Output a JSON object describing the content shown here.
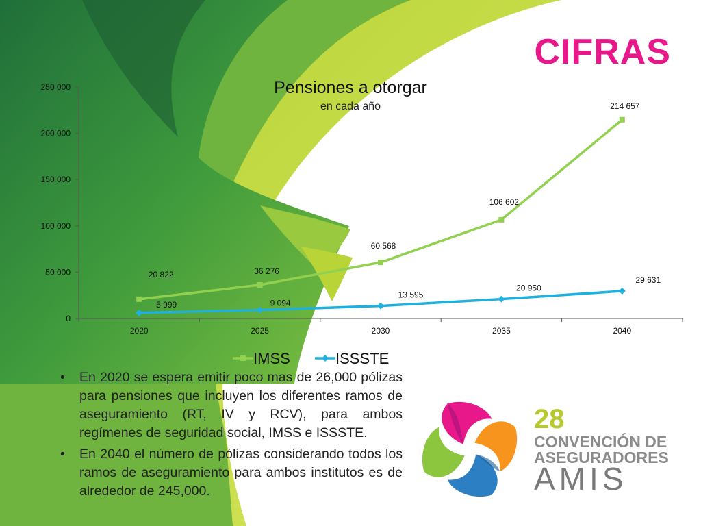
{
  "slide": {
    "heading": "CIFRAS",
    "colors": {
      "accent": "#e8178a",
      "green_dark": "#2f8a3a",
      "green_light": "#8cc63f",
      "lime": "#c8d839"
    }
  },
  "chart_data": {
    "type": "line",
    "title": "Pensiones a otorgar",
    "subtitle": "en cada año",
    "categories": [
      "2020",
      "2025",
      "2030",
      "2035",
      "2040"
    ],
    "series": [
      {
        "name": "IMSS",
        "values": [
          20822,
          36276,
          60568,
          106602,
          214657
        ],
        "labels": [
          "20 822",
          "36 276",
          "60 568",
          "106 602",
          "214 657"
        ],
        "color": "#92d050"
      },
      {
        "name": "ISSSTE",
        "values": [
          5999,
          9094,
          13595,
          20950,
          29631
        ],
        "labels": [
          "5 999",
          "9 094",
          "13 595",
          "20 950",
          "29 631"
        ],
        "color": "#1fb0e0"
      }
    ],
    "ylim": [
      0,
      250000
    ],
    "yticks": [
      0,
      50000,
      100000,
      150000,
      200000,
      250000
    ],
    "ytick_labels": [
      "0",
      "50 000",
      "100 000",
      "150 000",
      "200 000",
      "250 000"
    ],
    "legend": "bottom",
    "grid": false
  },
  "bullets": [
    "En 2020 se espera emitir poco mas de 26,000 pólizas para pensiones que incluyen los diferentes ramos de aseguramiento (RT, IV y RCV), para ambos regímenes de seguridad social, IMSS e ISSSTE.",
    "En 2040 el número de pólizas considerando todos los ramos de aseguramiento para ambos institutos es de alrededor de 245,000."
  ],
  "logo": {
    "number": "28",
    "line1": "CONVENCIÓN DE",
    "line2": "ASEGURADORES",
    "brand": "AMIS"
  }
}
